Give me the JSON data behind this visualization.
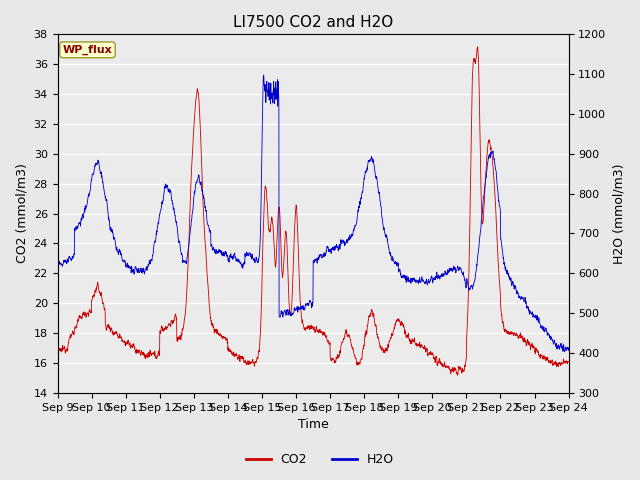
{
  "title": "LI7500 CO2 and H2O",
  "xlabel": "Time",
  "ylabel_left": "CO2 (mmol/m3)",
  "ylabel_right": "H2O (mmol/m3)",
  "ylim_left": [
    14,
    38
  ],
  "ylim_right": [
    300,
    1200
  ],
  "yticks_left": [
    14,
    16,
    18,
    20,
    22,
    24,
    26,
    28,
    30,
    32,
    34,
    36,
    38
  ],
  "yticks_right": [
    300,
    400,
    500,
    600,
    700,
    800,
    900,
    1000,
    1100,
    1200
  ],
  "xtick_labels": [
    "Sep 9",
    "Sep 10",
    "Sep 11",
    "Sep 12",
    "Sep 13",
    "Sep 14",
    "Sep 15",
    "Sep 16",
    "Sep 17",
    "Sep 18",
    "Sep 19",
    "Sep 20",
    "Sep 21",
    "Sep 22",
    "Sep 23",
    "Sep 24"
  ],
  "co2_color": "#cc0000",
  "h2o_color": "#0000cc",
  "bg_color": "#e8e8e8",
  "plot_bg_color": "#ebebeb",
  "annotation_text": "WP_flux",
  "annotation_bg": "#ffffcc",
  "annotation_border": "#999933",
  "legend_co2": "CO2",
  "legend_h2o": "H2O",
  "title_fontsize": 11,
  "axis_fontsize": 9,
  "tick_fontsize": 8
}
